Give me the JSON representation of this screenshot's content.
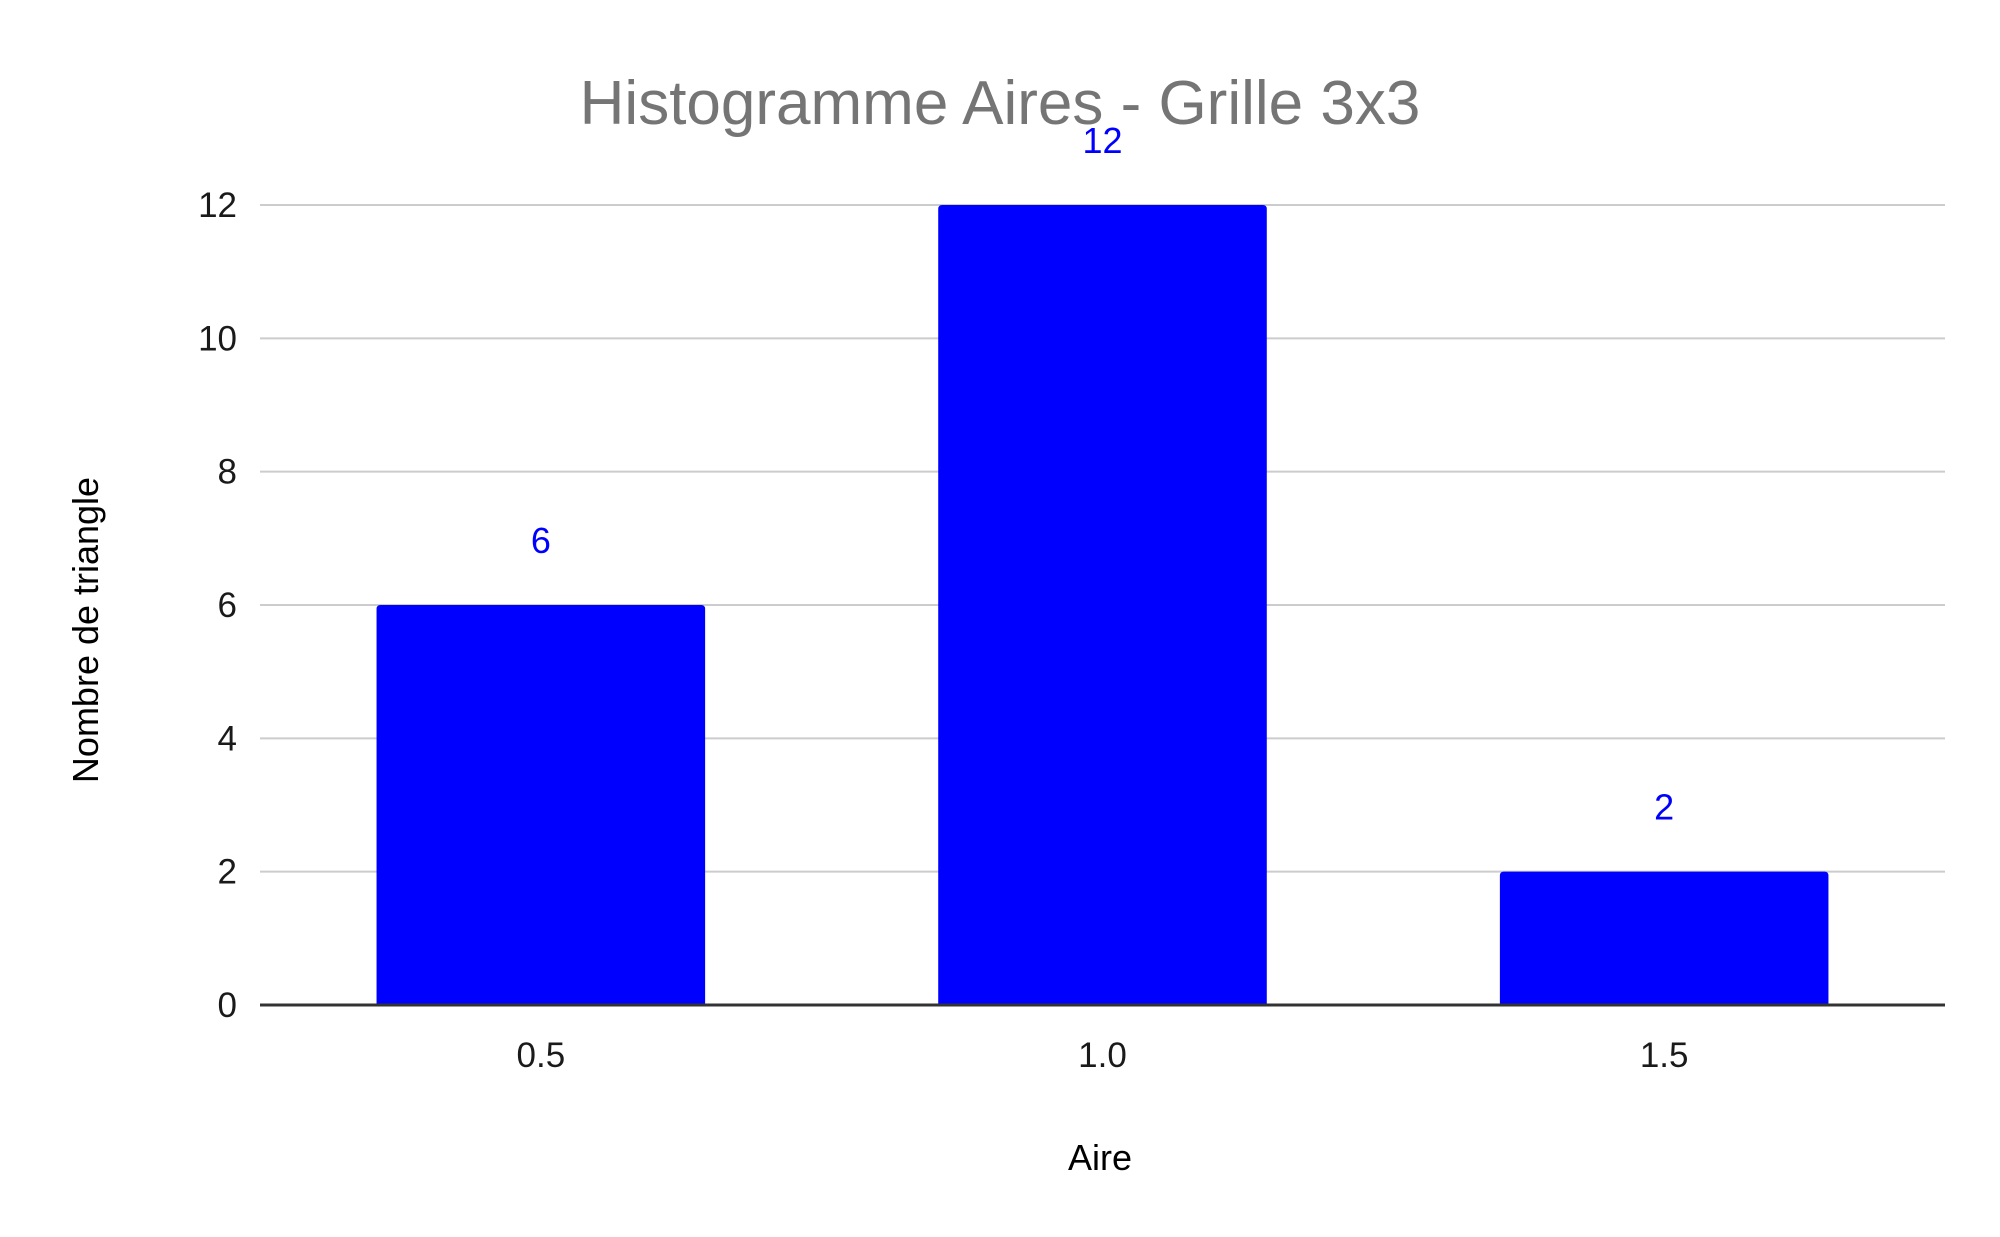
{
  "chart_data": {
    "type": "bar",
    "title": "Histogramme Aires - Grille 3x3",
    "xlabel": "Aire",
    "ylabel": "Nombre de triangle",
    "categories": [
      "0.5",
      "1.0",
      "1.5"
    ],
    "values": [
      6,
      12,
      2
    ],
    "data_labels": [
      "6",
      "12",
      "2"
    ],
    "ylim": [
      0,
      12
    ],
    "yticks": [
      0,
      2,
      4,
      6,
      8,
      10,
      12
    ],
    "grid": true,
    "legend": "none"
  },
  "colors": {
    "bar": "#0000ff",
    "data_label": "#0000ff",
    "title": "#757575",
    "gridline": "#cccccc",
    "baseline": "#333333"
  }
}
